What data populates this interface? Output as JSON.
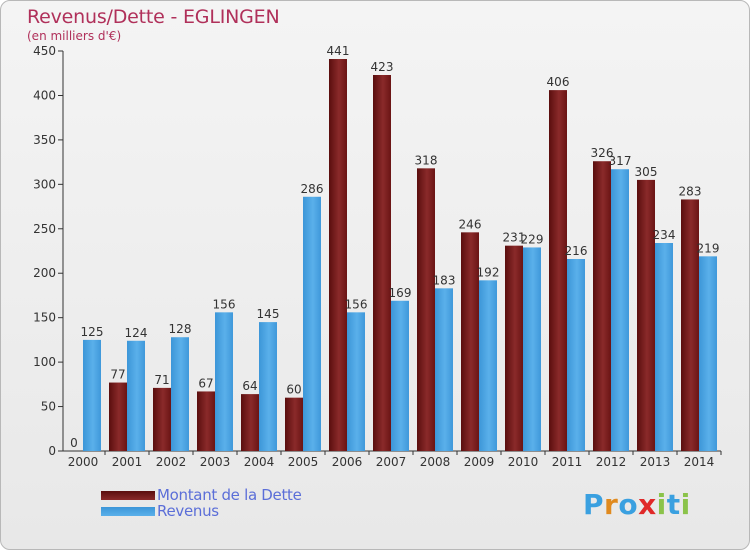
{
  "header": {
    "title": "Revenus/Dette - EGLINGEN",
    "subtitle": "(en milliers d'€)"
  },
  "legend": {
    "items": [
      {
        "label": "Montant de la Dette",
        "color": "#6e1414"
      },
      {
        "label": "Revenus",
        "color": "#4aa0e0"
      }
    ]
  },
  "logo": {
    "text": "Proxiti",
    "letters": [
      {
        "ch": "P",
        "color": "#3aa0e0"
      },
      {
        "ch": "r",
        "color": "#e08a1e"
      },
      {
        "ch": "o",
        "color": "#3aa0e0"
      },
      {
        "ch": "x",
        "color": "#e02828"
      },
      {
        "ch": "i",
        "color": "#8bc34a"
      },
      {
        "ch": "t",
        "color": "#3aa0e0"
      },
      {
        "ch": "i",
        "color": "#8bc34a"
      }
    ]
  },
  "chart_data": {
    "type": "bar",
    "title": "Revenus/Dette - EGLINGEN",
    "subtitle": "(en milliers d'€)",
    "categories": [
      "2000",
      "2001",
      "2002",
      "2003",
      "2004",
      "2005",
      "2006",
      "2007",
      "2008",
      "2009",
      "2010",
      "2011",
      "2012",
      "2013",
      "2014"
    ],
    "series": [
      {
        "name": "Montant de la Dette",
        "color": "#7d1f1f",
        "values": [
          0,
          77,
          71,
          67,
          64,
          60,
          441,
          423,
          318,
          246,
          231,
          406,
          326,
          305,
          283
        ]
      },
      {
        "name": "Revenus",
        "color": "#4aa3e2",
        "values": [
          125,
          124,
          128,
          156,
          145,
          286,
          156,
          169,
          183,
          192,
          229,
          216,
          317,
          234,
          219
        ]
      }
    ],
    "ylim": [
      0,
      450
    ],
    "yticks": [
      0,
      50,
      100,
      150,
      200,
      250,
      300,
      350,
      400,
      450
    ],
    "grid": false,
    "legend_position": "bottom-left"
  }
}
